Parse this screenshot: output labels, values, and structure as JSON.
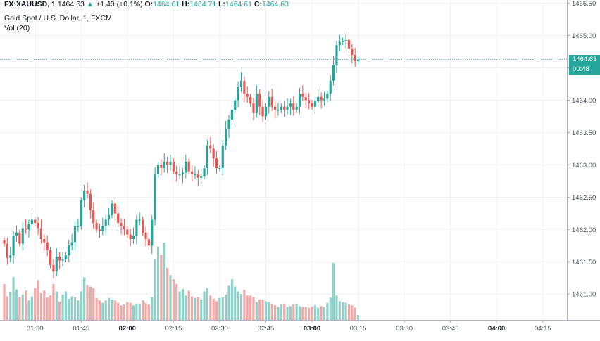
{
  "header": {
    "symbol": "FX:XAUUSD, 1",
    "last": "1464.63",
    "change": "+1.40 (+0.1%)",
    "change_arrow": "▲",
    "open_label": "O:",
    "open": "1464.61",
    "high_label": "H:",
    "high": "1464.71",
    "low_label": "L:",
    "low": "1464.61",
    "close_label": "C:",
    "close": "1464.63",
    "subtitle": "Gold Spot / U.S. Dollar, 1, FXCM",
    "volume_title": "Vol (20)"
  },
  "price_badge": "1464.63",
  "countdown_badge": "00:48",
  "colors": {
    "up": "#26a69a",
    "down": "#ef5350",
    "vol_up": "#8fd0c8",
    "vol_down": "#f5a7a5",
    "grid": "#eef0f3",
    "axis": "#b2b5be"
  },
  "chart_data": {
    "type": "candlestick",
    "title": "Gold Spot / U.S. Dollar, 1, FXCM",
    "ylim": [
      1460.6,
      1465.55
    ],
    "y_ticks": [
      "1465.50",
      "1465.00",
      "1464.50",
      "1464.00",
      "1463.50",
      "1463.00",
      "1462.50",
      "1462.00",
      "1461.50",
      "1461.00"
    ],
    "y_tick_values": [
      1465.5,
      1465.0,
      1464.5,
      1464.0,
      1463.5,
      1463.0,
      1462.5,
      1462.0,
      1461.5,
      1461.0
    ],
    "x_ticks": [
      "01:30",
      "01:45",
      "02:00",
      "02:15",
      "02:30",
      "02:45",
      "03:00",
      "03:15",
      "03:30",
      "03:45",
      "04:00",
      "04:15"
    ],
    "x_tick_minutes": [
      90,
      105,
      120,
      135,
      150,
      165,
      180,
      195,
      210,
      225,
      240,
      255
    ],
    "x_tick_bold": [
      false,
      false,
      true,
      false,
      false,
      false,
      true,
      false,
      false,
      false,
      true,
      false
    ],
    "last_price": 1464.63,
    "start_minute": 80,
    "closes": [
      1461.78,
      1461.56,
      1461.6,
      1461.9,
      1461.95,
      1461.78,
      1462.02,
      1462.0,
      1462.08,
      1462.15,
      1462.1,
      1462.02,
      1461.85,
      1461.8,
      1461.68,
      1461.45,
      1461.35,
      1461.58,
      1461.52,
      1461.54,
      1461.6,
      1461.75,
      1461.8,
      1462.05,
      1462.05,
      1462.45,
      1462.6,
      1462.55,
      1462.3,
      1462.1,
      1462.0,
      1461.98,
      1462.05,
      1462.15,
      1462.22,
      1462.4,
      1462.25,
      1462.1,
      1462.05,
      1462.0,
      1461.92,
      1461.85,
      1461.9,
      1462.15,
      1462.15,
      1461.95,
      1461.85,
      1461.75,
      1462.15,
      1462.85,
      1463.0,
      1462.95,
      1463.05,
      1463.0,
      1463.05,
      1462.9,
      1462.85,
      1462.85,
      1462.88,
      1463.05,
      1462.9,
      1462.85,
      1462.85,
      1462.8,
      1462.82,
      1462.95,
      1463.3,
      1463.25,
      1463.1,
      1462.95,
      1462.95,
      1463.3,
      1463.55,
      1463.7,
      1463.85,
      1464.0,
      1464.2,
      1464.3,
      1464.1,
      1464.05,
      1463.95,
      1463.8,
      1464.1,
      1463.9,
      1463.75,
      1463.9,
      1464.05,
      1463.9,
      1463.85,
      1463.85,
      1463.9,
      1463.85,
      1463.9,
      1463.95,
      1463.85,
      1463.9,
      1464.1,
      1464.05,
      1464.0,
      1463.95,
      1463.9,
      1463.98,
      1464.05,
      1464.0,
      1464.02,
      1464.1,
      1464.3,
      1464.55,
      1464.85,
      1464.9,
      1464.92,
      1464.93,
      1464.8,
      1464.7,
      1464.6,
      1464.63
    ],
    "volumes": [
      88,
      58,
      68,
      105,
      75,
      56,
      62,
      72,
      48,
      58,
      78,
      98,
      66,
      72,
      55,
      60,
      88,
      70,
      45,
      62,
      70,
      52,
      58,
      56,
      48,
      70,
      105,
      86,
      82,
      78,
      54,
      48,
      42,
      48,
      54,
      50,
      48,
      42,
      36,
      38,
      44,
      42,
      36,
      40,
      40,
      48,
      42,
      38,
      56,
      150,
      180,
      160,
      190,
      128,
      110,
      100,
      88,
      70,
      76,
      60,
      72,
      58,
      54,
      56,
      50,
      70,
      78,
      60,
      52,
      46,
      54,
      56,
      62,
      84,
      100,
      82,
      70,
      64,
      74,
      60,
      60,
      56,
      44,
      50,
      50,
      46,
      44,
      40,
      36,
      32,
      38,
      40,
      32,
      34,
      38,
      40,
      34,
      32,
      32,
      30,
      32,
      36,
      30,
      34,
      32,
      42,
      55,
      140,
      60,
      46,
      44,
      42,
      38,
      36,
      30,
      12
    ]
  }
}
